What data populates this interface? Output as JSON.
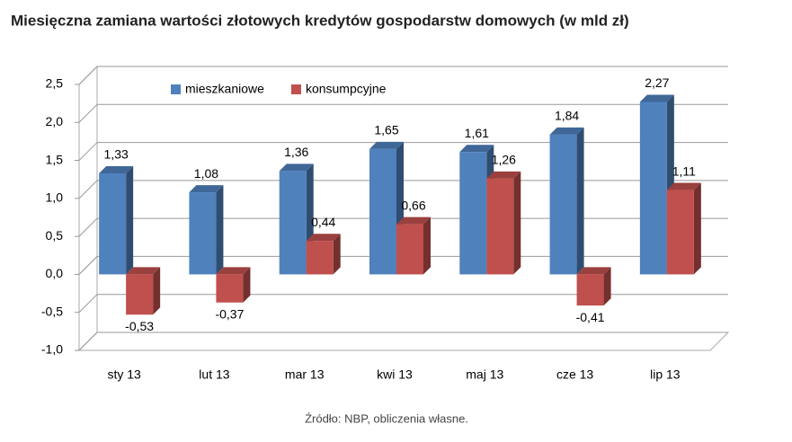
{
  "chart_data": {
    "type": "bar3d",
    "title": "Miesięczna zamiana wartości złotowych kredytów gospodarstw domowych (w mld zł)",
    "source": "Źródło: NBP, obliczenia własne.",
    "categories": [
      "sty 13",
      "lut 13",
      "mar 13",
      "kwi 13",
      "maj 13",
      "cze 13",
      "lip 13"
    ],
    "series": [
      {
        "name": "mieszkaniowe",
        "color": "#4f81bd",
        "values": [
          1.33,
          1.08,
          1.36,
          1.65,
          1.61,
          1.84,
          2.27
        ],
        "value_labels": [
          "1,33",
          "1,08",
          "1,36",
          "1,65",
          "1,61",
          "1,84",
          "2,27"
        ]
      },
      {
        "name": "konsumpcyjne",
        "color": "#c0504d",
        "values": [
          -0.53,
          -0.37,
          0.44,
          0.66,
          1.26,
          -0.41,
          1.11
        ],
        "value_labels": [
          "-0,53",
          "-0,37",
          "0,44",
          "0,66",
          "1,26",
          "-0,41",
          "1,11"
        ]
      }
    ],
    "ylim": [
      -1,
      2.5
    ],
    "yticks": [
      {
        "value": -1,
        "label": "-1,0"
      },
      {
        "value": -0.5,
        "label": "-0,5"
      },
      {
        "value": 0,
        "label": "0,0"
      },
      {
        "value": 0.5,
        "label": "0,5"
      },
      {
        "value": 1,
        "label": "1,0"
      },
      {
        "value": 1.5,
        "label": "1,5"
      },
      {
        "value": 2,
        "label": "2,0"
      },
      {
        "value": 2.5,
        "label": "2,5"
      }
    ],
    "grid": true,
    "legend": "top"
  }
}
